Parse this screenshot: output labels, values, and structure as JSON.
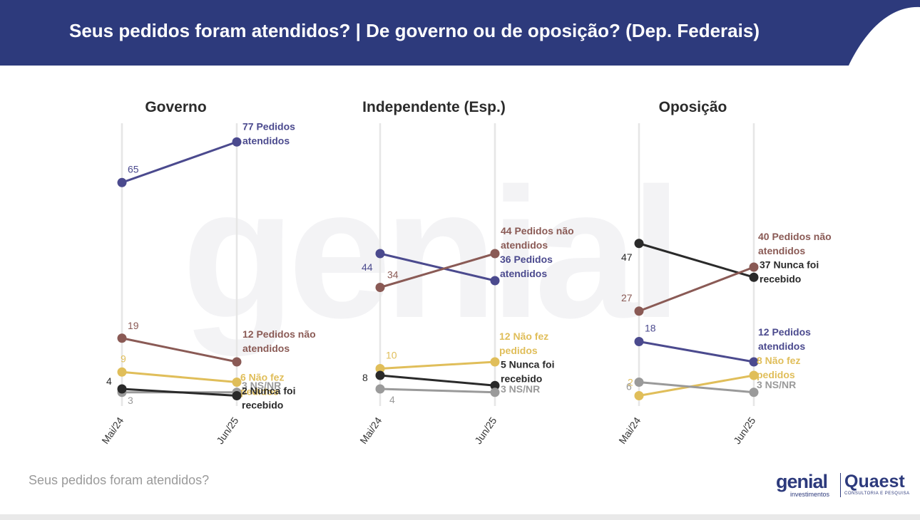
{
  "header": {
    "title": "Seus pedidos foram atendidos? | De governo ou de oposição? (Dep. Federais)",
    "background": "#2d3a7c"
  },
  "footer": {
    "text": "Seus pedidos foram atendidos?"
  },
  "logos": {
    "genial": "genial",
    "genial_sub": "investimentos",
    "quaest": "Quaest",
    "quaest_sub": "CONSULTORIA E PESQUISA"
  },
  "colors": {
    "atendidos": "#4b4a8e",
    "nao_atendidos": "#8a5a55",
    "nao_fez": "#e0be5a",
    "nunca": "#2a2a2a",
    "nsnr": "#9a9a9a"
  },
  "chart_data": [
    {
      "type": "line",
      "title": "Governo",
      "categories": [
        "Mai/24",
        "Jun/25"
      ],
      "ylim": [
        0,
        80
      ],
      "series": [
        {
          "name": "Pedidos atendidos",
          "end_label": "77 Pedidos atendidos",
          "start_label": "65",
          "color": "#4b4a8e",
          "values": [
            65,
            77
          ]
        },
        {
          "name": "Pedidos não atendidos",
          "end_label": "12 Pedidos não atendidos",
          "start_label": "19",
          "color": "#8a5a55",
          "values": [
            19,
            12
          ]
        },
        {
          "name": "Não fez pedidos",
          "end_label": "6 Não fez pedidos",
          "start_label": "9",
          "color": "#e0be5a",
          "values": [
            9,
            6
          ]
        },
        {
          "name": "NS/NR",
          "end_label": "3 NS/NR",
          "start_label": "3",
          "color": "#9a9a9a",
          "values": [
            3,
            3
          ]
        },
        {
          "name": "Nunca foi recebido",
          "end_label": "2 Nunca foi recebido",
          "start_label": "4",
          "color": "#2a2a2a",
          "values": [
            4,
            2
          ]
        }
      ]
    },
    {
      "type": "line",
      "title": "Independente (Esp.)",
      "categories": [
        "Mai/24",
        "Jun/25"
      ],
      "ylim": [
        0,
        80
      ],
      "series": [
        {
          "name": "Pedidos atendidos",
          "end_label": "36 Pedidos atendidos",
          "start_label": "44",
          "color": "#4b4a8e",
          "values": [
            44,
            36
          ]
        },
        {
          "name": "Pedidos não atendidos",
          "end_label": "44 Pedidos não atendidos",
          "start_label": "34",
          "color": "#8a5a55",
          "values": [
            34,
            44
          ]
        },
        {
          "name": "Não fez pedidos",
          "end_label": "12 Não fez pedidos",
          "start_label": "10",
          "color": "#e0be5a",
          "values": [
            10,
            12
          ]
        },
        {
          "name": "Nunca foi recebido",
          "end_label": "5 Nunca foi recebido",
          "start_label": "8",
          "color": "#2a2a2a",
          "values": [
            8,
            5
          ]
        },
        {
          "name": "NS/NR",
          "end_label": "3 NS/NR",
          "start_label": "4",
          "color": "#9a9a9a",
          "values": [
            4,
            3
          ]
        }
      ]
    },
    {
      "type": "line",
      "title": "Oposição",
      "categories": [
        "Mai/24",
        "Jun/25"
      ],
      "ylim": [
        0,
        80
      ],
      "series": [
        {
          "name": "Nunca foi recebido",
          "end_label": "37 Nunca foi recebido",
          "start_label": "47",
          "color": "#2a2a2a",
          "values": [
            47,
            37
          ]
        },
        {
          "name": "Pedidos não atendidos",
          "end_label": "40 Pedidos não atendidos",
          "start_label": "27",
          "color": "#8a5a55",
          "values": [
            27,
            40
          ]
        },
        {
          "name": "Pedidos atendidos",
          "end_label": "12 Pedidos atendidos",
          "start_label": "18",
          "color": "#4b4a8e",
          "values": [
            18,
            12
          ]
        },
        {
          "name": "Não fez pedidos",
          "end_label": "8 Não fez pedidos",
          "start_label": "2",
          "color": "#e0be5a",
          "values": [
            2,
            8
          ]
        },
        {
          "name": "NS/NR",
          "end_label": "3 NS/NR",
          "start_label": "6",
          "color": "#9a9a9a",
          "values": [
            6,
            3
          ]
        }
      ]
    }
  ]
}
